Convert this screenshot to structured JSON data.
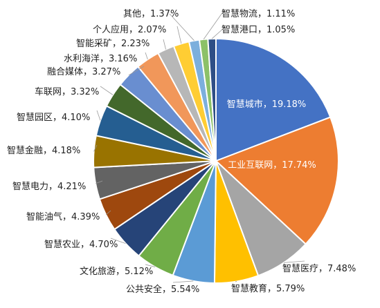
{
  "chart_data": {
    "type": "pie",
    "title": "",
    "grid": false,
    "legend": "none",
    "slices": [
      {
        "label": "智慧城市",
        "value": 19.18,
        "display": "19.18%",
        "color": "#4472C4"
      },
      {
        "label": "工业互联网",
        "value": 17.74,
        "display": "17.74%",
        "color": "#ED7D31"
      },
      {
        "label": "智慧医疗",
        "value": 7.48,
        "display": "7.48%",
        "color": "#A5A5A5"
      },
      {
        "label": "智慧教育",
        "value": 5.79,
        "display": "5.79%",
        "color": "#FFC000"
      },
      {
        "label": "公共安全",
        "value": 5.54,
        "display": "5.54%",
        "color": "#5B9BD5"
      },
      {
        "label": "文化旅游",
        "value": 5.12,
        "display": "5.12%",
        "color": "#70AD47"
      },
      {
        "label": "智慧农业",
        "value": 4.7,
        "display": "4.70%",
        "color": "#264478"
      },
      {
        "label": "智能油气",
        "value": 4.39,
        "display": "4.39%",
        "color": "#9E480E"
      },
      {
        "label": "智慧电力",
        "value": 4.21,
        "display": "4.21%",
        "color": "#636363"
      },
      {
        "label": "智慧金融",
        "value": 4.18,
        "display": "4.18%",
        "color": "#997300"
      },
      {
        "label": "智慧园区",
        "value": 4.1,
        "display": "4.10%",
        "color": "#255E91"
      },
      {
        "label": "车联网",
        "value": 3.32,
        "display": "3.32%",
        "color": "#43682B"
      },
      {
        "label": "融合媒体",
        "value": 3.27,
        "display": "3.27%",
        "color": "#698ED0"
      },
      {
        "label": "水利海洋",
        "value": 3.16,
        "display": "3.16%",
        "color": "#F1975A"
      },
      {
        "label": "智能采矿",
        "value": 2.23,
        "display": "2.23%",
        "color": "#B7B7B7"
      },
      {
        "label": "个人应用",
        "value": 2.07,
        "display": "2.07%",
        "color": "#FFCD33"
      },
      {
        "label": "其他",
        "value": 1.37,
        "display": "1.37%",
        "color": "#7CAFDD"
      },
      {
        "label": "智慧物流",
        "value": 1.11,
        "display": "1.11%",
        "color": "#8CC168"
      },
      {
        "label": "智慧港口",
        "value": 1.05,
        "display": "1.05%",
        "color": "#2E4E86"
      }
    ]
  }
}
